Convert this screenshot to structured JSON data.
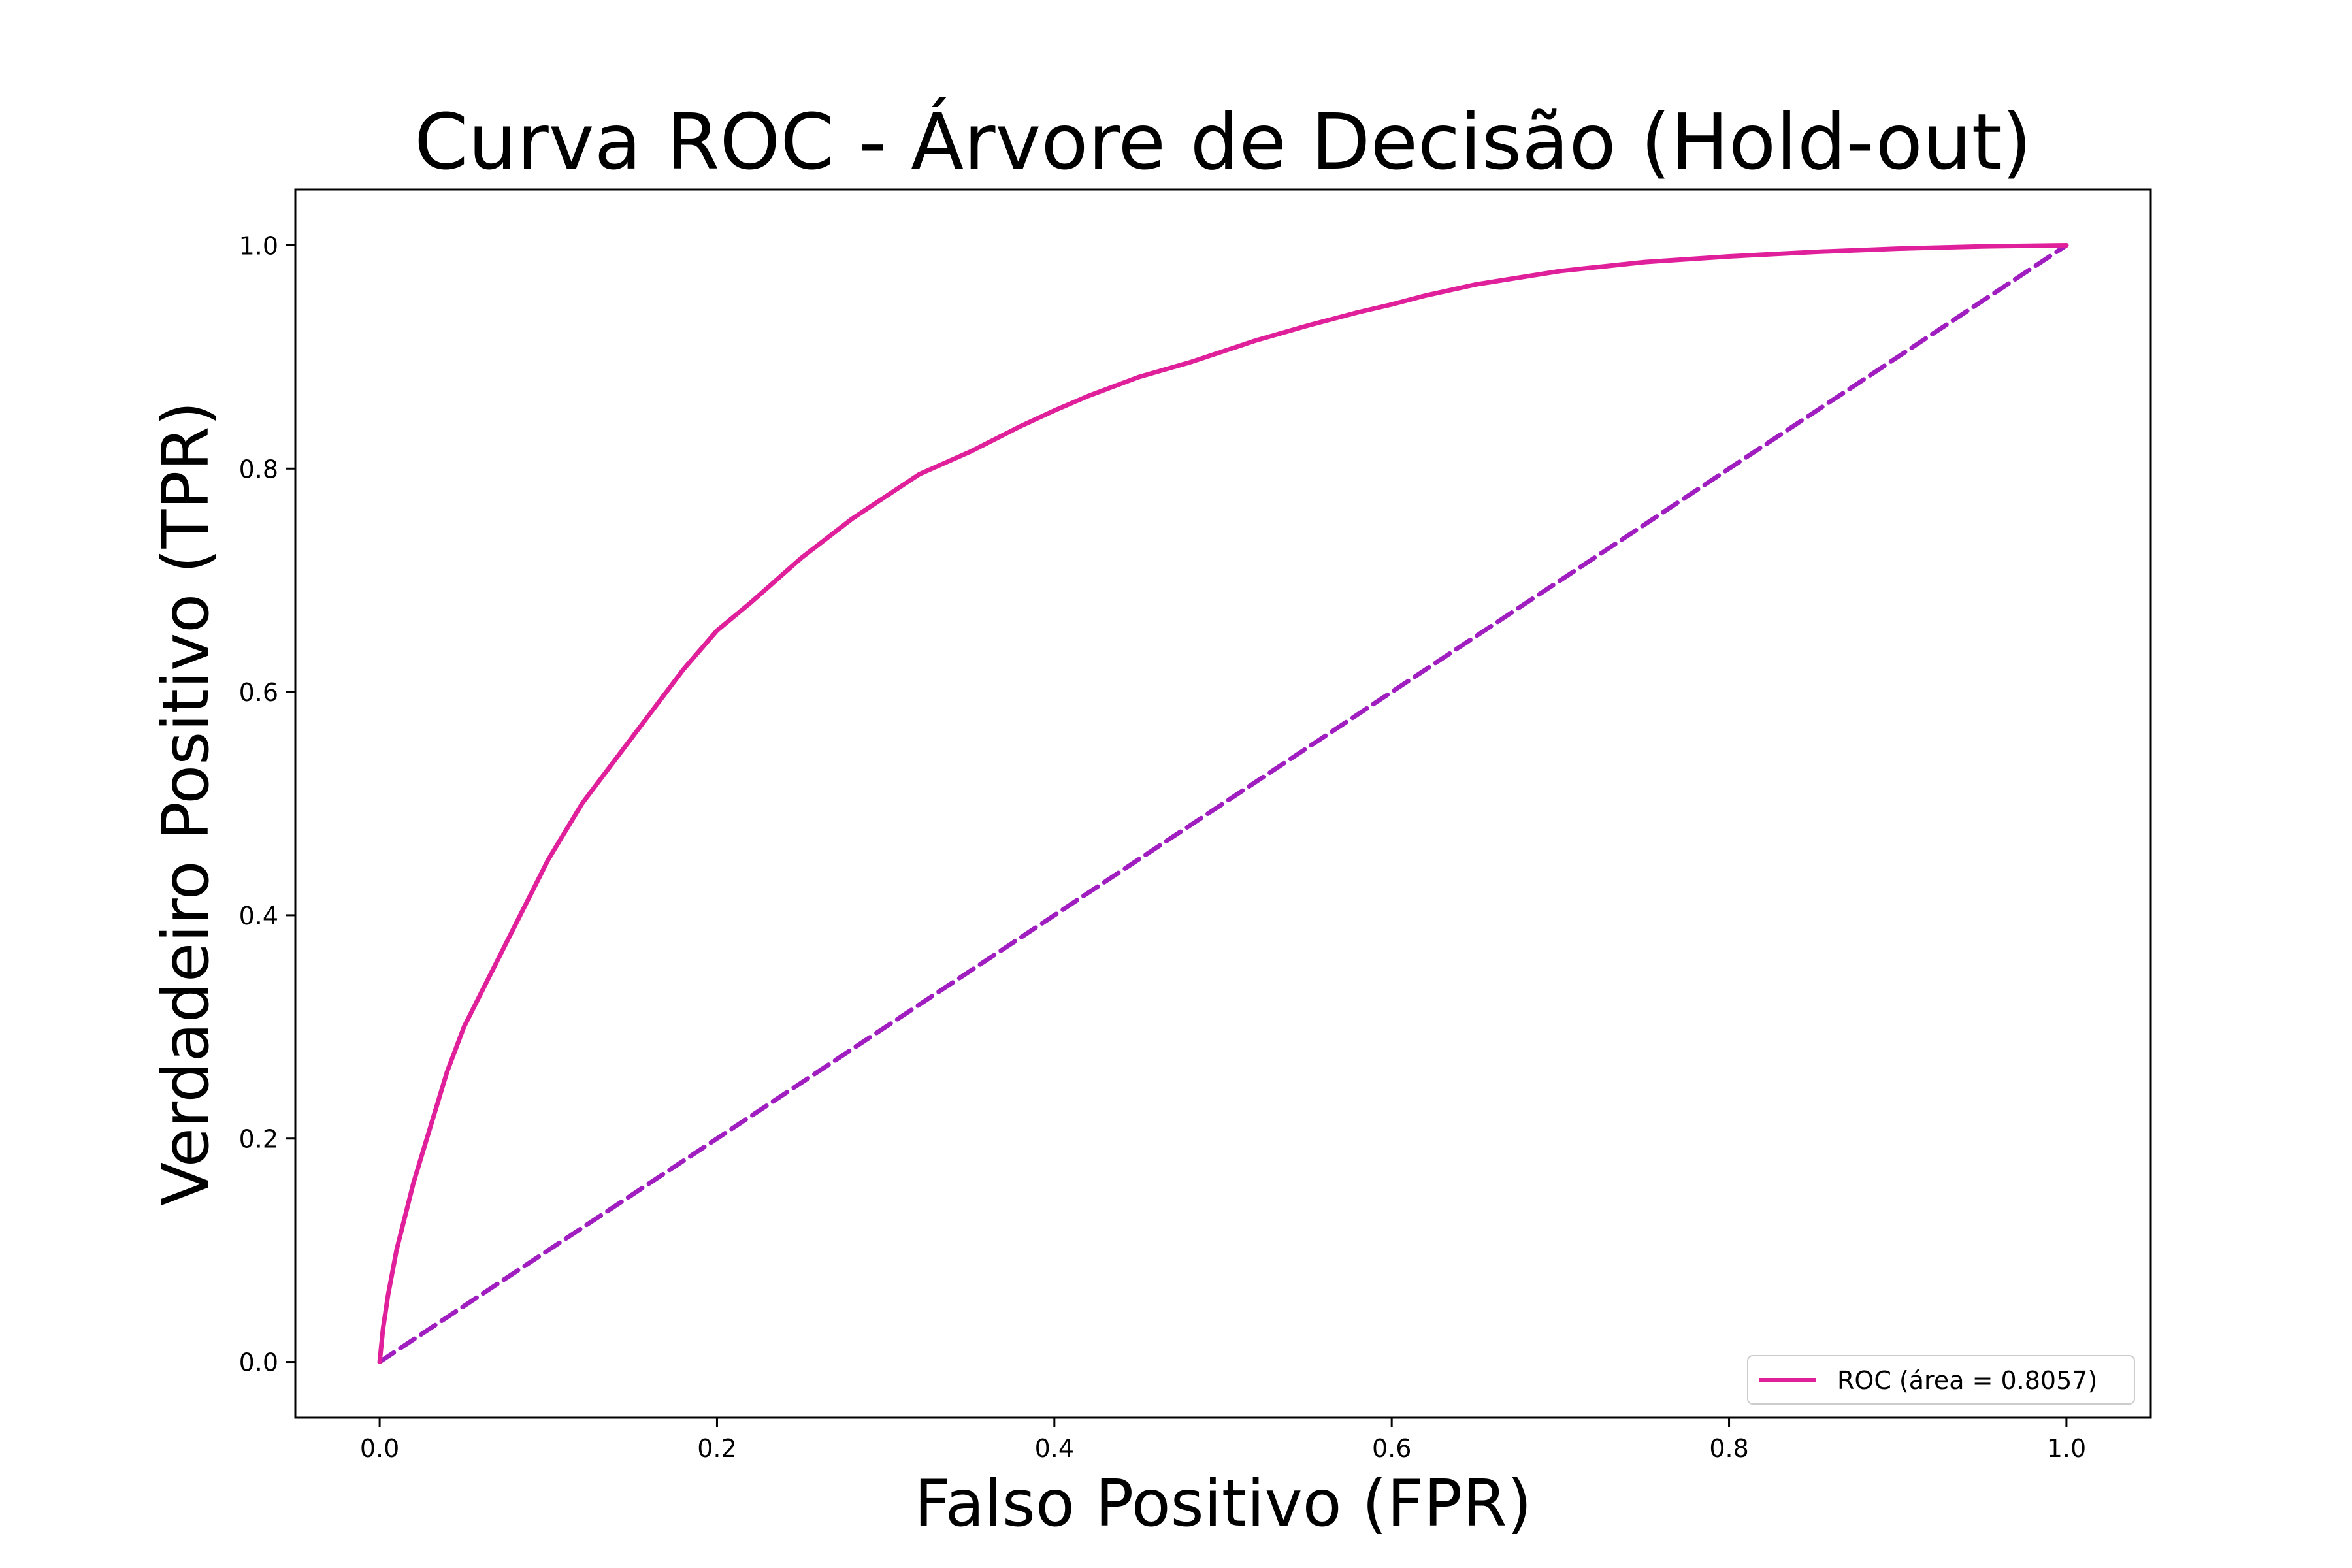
{
  "chart_data": {
    "type": "line",
    "title": "Curva ROC - Árvore de Decisão (Hold-out)",
    "xlabel": "Falso Positivo (FPR)",
    "ylabel": "Verdadeiro Positivo (TPR)",
    "xlim": [
      -0.05,
      1.05
    ],
    "ylim": [
      -0.05,
      1.05
    ],
    "xticks": [
      "0.0",
      "0.2",
      "0.4",
      "0.6",
      "0.8",
      "1.0"
    ],
    "yticks": [
      "0.0",
      "0.2",
      "0.4",
      "0.6",
      "0.8",
      "1.0"
    ],
    "grid": false,
    "legend_position": "lower-right",
    "series": [
      {
        "name": "ROC (área = 0.8057)",
        "color": "#e0209a",
        "style": "solid",
        "x": [
          0.0,
          0.002,
          0.005,
          0.01,
          0.015,
          0.02,
          0.03,
          0.04,
          0.05,
          0.06,
          0.07,
          0.08,
          0.09,
          0.1,
          0.12,
          0.14,
          0.16,
          0.18,
          0.2,
          0.22,
          0.25,
          0.28,
          0.3,
          0.32,
          0.35,
          0.38,
          0.4,
          0.42,
          0.45,
          0.48,
          0.5,
          0.52,
          0.55,
          0.58,
          0.6,
          0.62,
          0.65,
          0.7,
          0.75,
          0.8,
          0.85,
          0.9,
          0.95,
          1.0
        ],
        "y": [
          0.0,
          0.03,
          0.06,
          0.1,
          0.13,
          0.16,
          0.21,
          0.26,
          0.3,
          0.33,
          0.36,
          0.39,
          0.42,
          0.45,
          0.5,
          0.54,
          0.58,
          0.62,
          0.655,
          0.68,
          0.72,
          0.755,
          0.775,
          0.795,
          0.815,
          0.838,
          0.852,
          0.865,
          0.882,
          0.895,
          0.905,
          0.915,
          0.928,
          0.94,
          0.947,
          0.955,
          0.965,
          0.977,
          0.985,
          0.99,
          0.994,
          0.997,
          0.999,
          1.0
        ]
      },
      {
        "name": "",
        "color": "#a01ec0",
        "style": "dashed",
        "x": [
          0.0,
          1.0
        ],
        "y": [
          0.0,
          1.0
        ]
      }
    ],
    "legend": [
      {
        "label": "ROC (área = 0.8057)",
        "color": "#e0209a"
      }
    ]
  }
}
